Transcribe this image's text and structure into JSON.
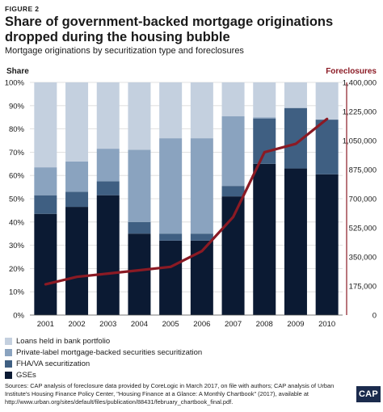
{
  "figure_label": "FIGURE 2",
  "title": "Share of government-backed mortgage originations dropped during the housing bubble",
  "subtitle": "Mortgage originations by securitization type and foreclosures",
  "source": "Sources: CAP analysis of foreclosure data provided by CoreLogic in March 2017, on file with authors; CAP analysis of Urban Institute's Housing Finance Policy Center, \"Housing Finance at a Glance: A Monthly Chartbook\" (2017), available at http://www.urban.org/sites/default/files/publication/88431/february_chartbook_final.pdf.",
  "logo_text": "CAP",
  "colors": {
    "gses": "#0b1a33",
    "fha_va": "#3f5f82",
    "private_label": "#8aa3bf",
    "bank_portfolio": "#c4d0df",
    "foreclosures": "#8b1a24",
    "grid": "#d9d9d9"
  },
  "chart_data": {
    "type": "bar",
    "stacked": true,
    "categories": [
      "2001",
      "2002",
      "2003",
      "2004",
      "2005",
      "2006",
      "2007",
      "2008",
      "2009",
      "2010"
    ],
    "series": [
      {
        "name": "GSEs",
        "color_key": "gses",
        "values": [
          43.5,
          46.5,
          51.5,
          35,
          32,
          32,
          51,
          65,
          63,
          60.5
        ]
      },
      {
        "name": "FHA/VA securitization",
        "color_key": "fha_va",
        "values": [
          8,
          6.5,
          6,
          5,
          3,
          3,
          4.5,
          19.5,
          26,
          23.5
        ]
      },
      {
        "name": "Private-label mortgage-backed securities securitization",
        "color_key": "private_label",
        "values": [
          12,
          13,
          14,
          31,
          41,
          41,
          30,
          0.5,
          0,
          0
        ]
      },
      {
        "name": "Loans held in bank portfolio",
        "color_key": "bank_portfolio",
        "values": [
          36.5,
          34,
          28.5,
          29,
          24,
          24,
          14.5,
          15,
          11,
          16
        ]
      }
    ],
    "legend_order": [
      "Loans held in bank portfolio",
      "Private-label mortgage-backed securities securitization",
      "FHA/VA securitization",
      "GSEs"
    ],
    "line_series": {
      "name": "Foreclosures",
      "color_key": "foreclosures",
      "values": [
        185000,
        230000,
        250000,
        270000,
        290000,
        385000,
        590000,
        980000,
        1030000,
        1180000
      ]
    },
    "y_left": {
      "label": "Share",
      "ylim": [
        0,
        100
      ],
      "ticks": [
        0,
        10,
        20,
        30,
        40,
        50,
        60,
        70,
        80,
        90,
        100
      ],
      "tick_labels": [
        "0%",
        "10%",
        "20%",
        "30%",
        "40%",
        "50%",
        "60%",
        "70%",
        "80%",
        "90%",
        "100%"
      ]
    },
    "y_right": {
      "label": "Foreclosures",
      "ylim": [
        0,
        1400000
      ],
      "ticks": [
        0,
        175000,
        350000,
        525000,
        700000,
        875000,
        1050000,
        1225000,
        1400000
      ],
      "tick_labels": [
        "0",
        "175,000",
        "350,000",
        "525,000",
        "700,000",
        "875,000",
        "1,050,000",
        "1,225,000",
        "1,400,000"
      ]
    },
    "grid": true
  }
}
